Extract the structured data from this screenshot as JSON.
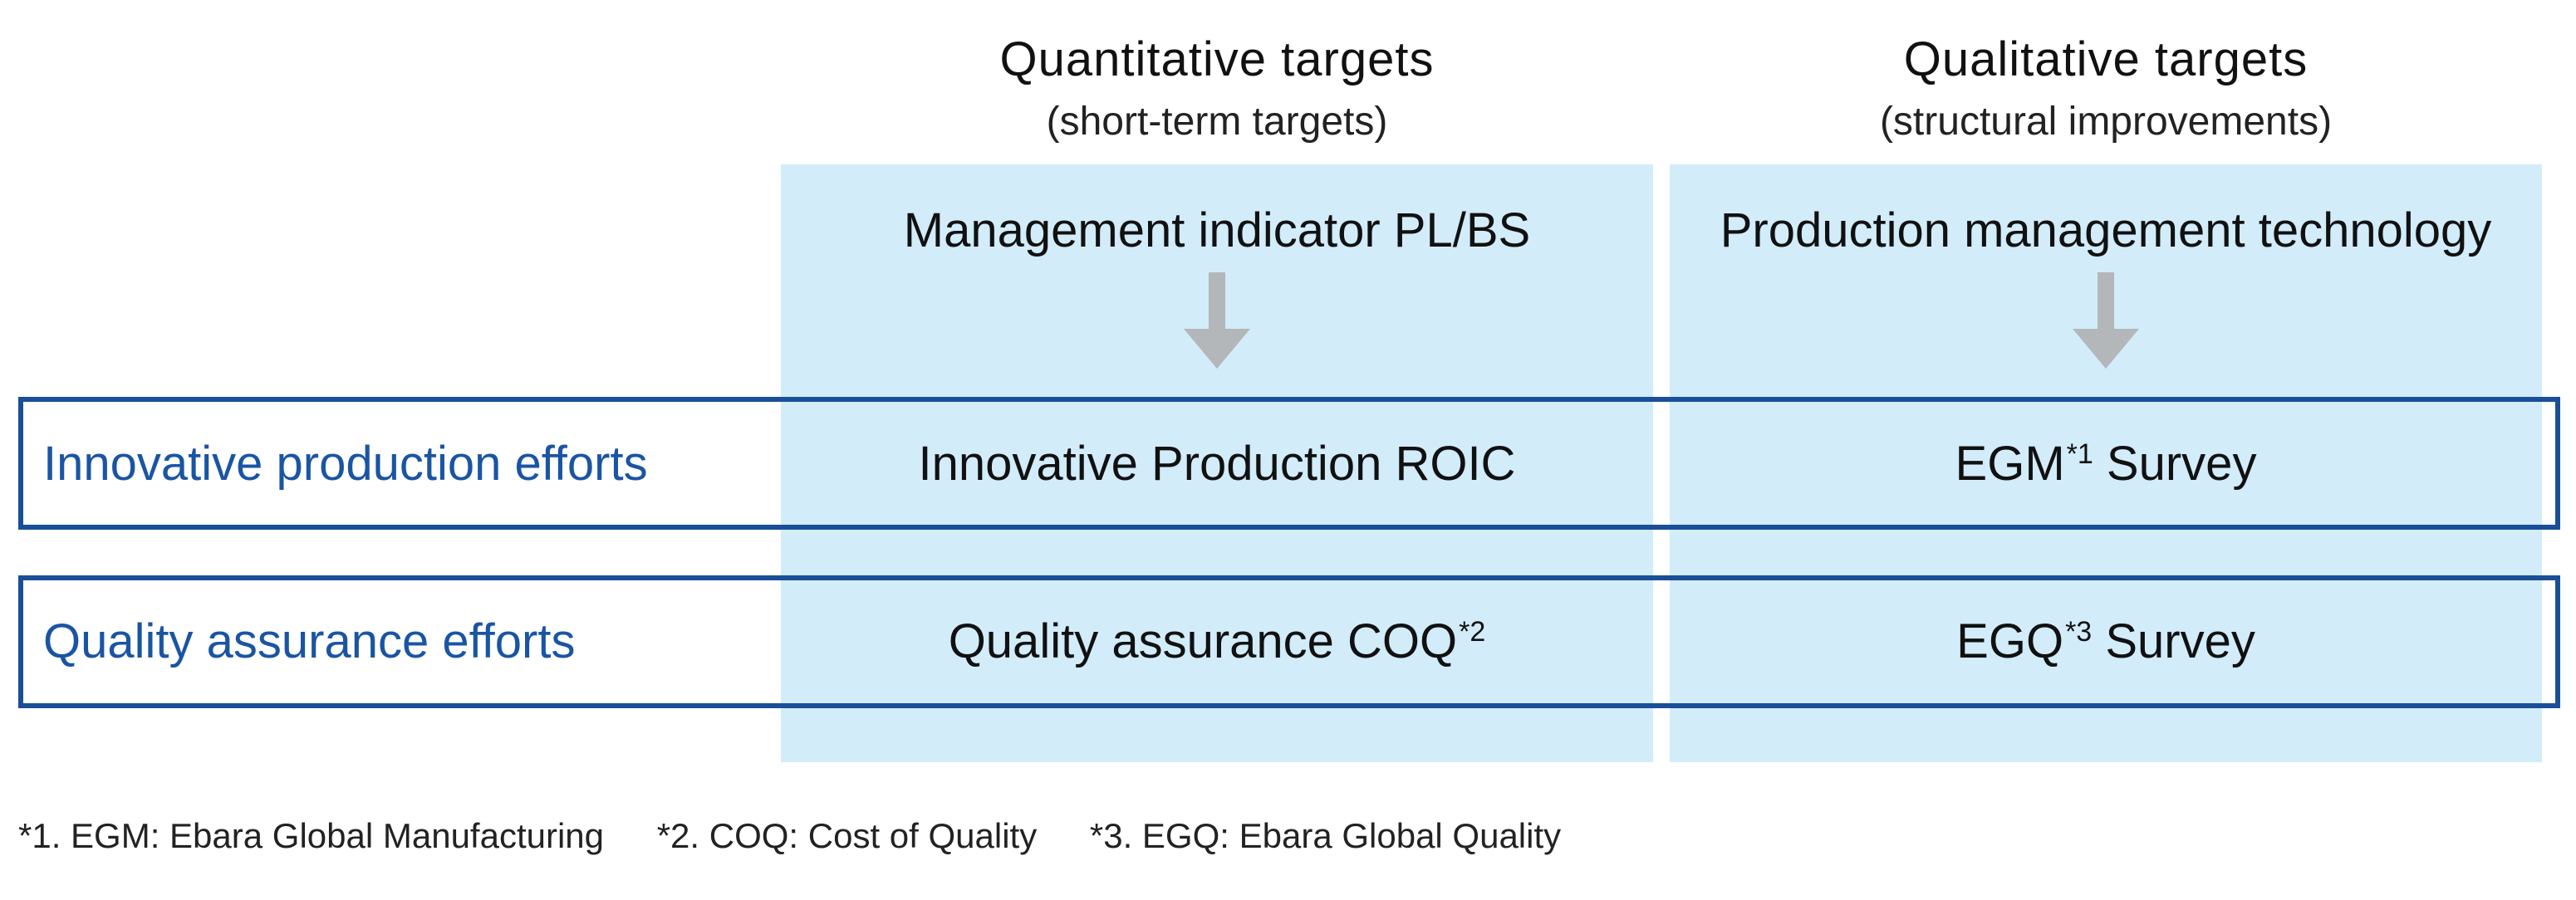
{
  "columns": [
    {
      "title": "Quantitative targets",
      "subtitle": "(short-term targets)",
      "category": "Management indicator PL/BS",
      "arrow_color": "#b3b7b9",
      "background": "#d2ecfa"
    },
    {
      "title": "Qualitative targets",
      "subtitle": "(structural improvements)",
      "category": "Production management technology",
      "arrow_color": "#b3b7b9",
      "background": "#d2ecfa"
    }
  ],
  "rows": [
    {
      "label": "Innovative production efforts",
      "cells": [
        {
          "text": "Innovative Production ROIC",
          "note": ""
        },
        {
          "text": "EGM",
          "note": "*1",
          "suffix": " Survey"
        }
      ]
    },
    {
      "label": "Quality assurance efforts",
      "cells": [
        {
          "text": "Quality assurance COQ",
          "note": "*2",
          "suffix": ""
        },
        {
          "text": "EGQ",
          "note": "*3",
          "suffix": " Survey"
        }
      ]
    }
  ],
  "footnotes": [
    "*1. EGM: Ebara Global Manufacturing",
    "*2. COQ: Cost of Quality",
    "*3. EGQ: Ebara Global Quality"
  ],
  "colors": {
    "row_border": "#1a4f98",
    "row_label": "#1a55a3",
    "column_fill": "#d2ecfa",
    "arrow": "#b3b7b9"
  }
}
